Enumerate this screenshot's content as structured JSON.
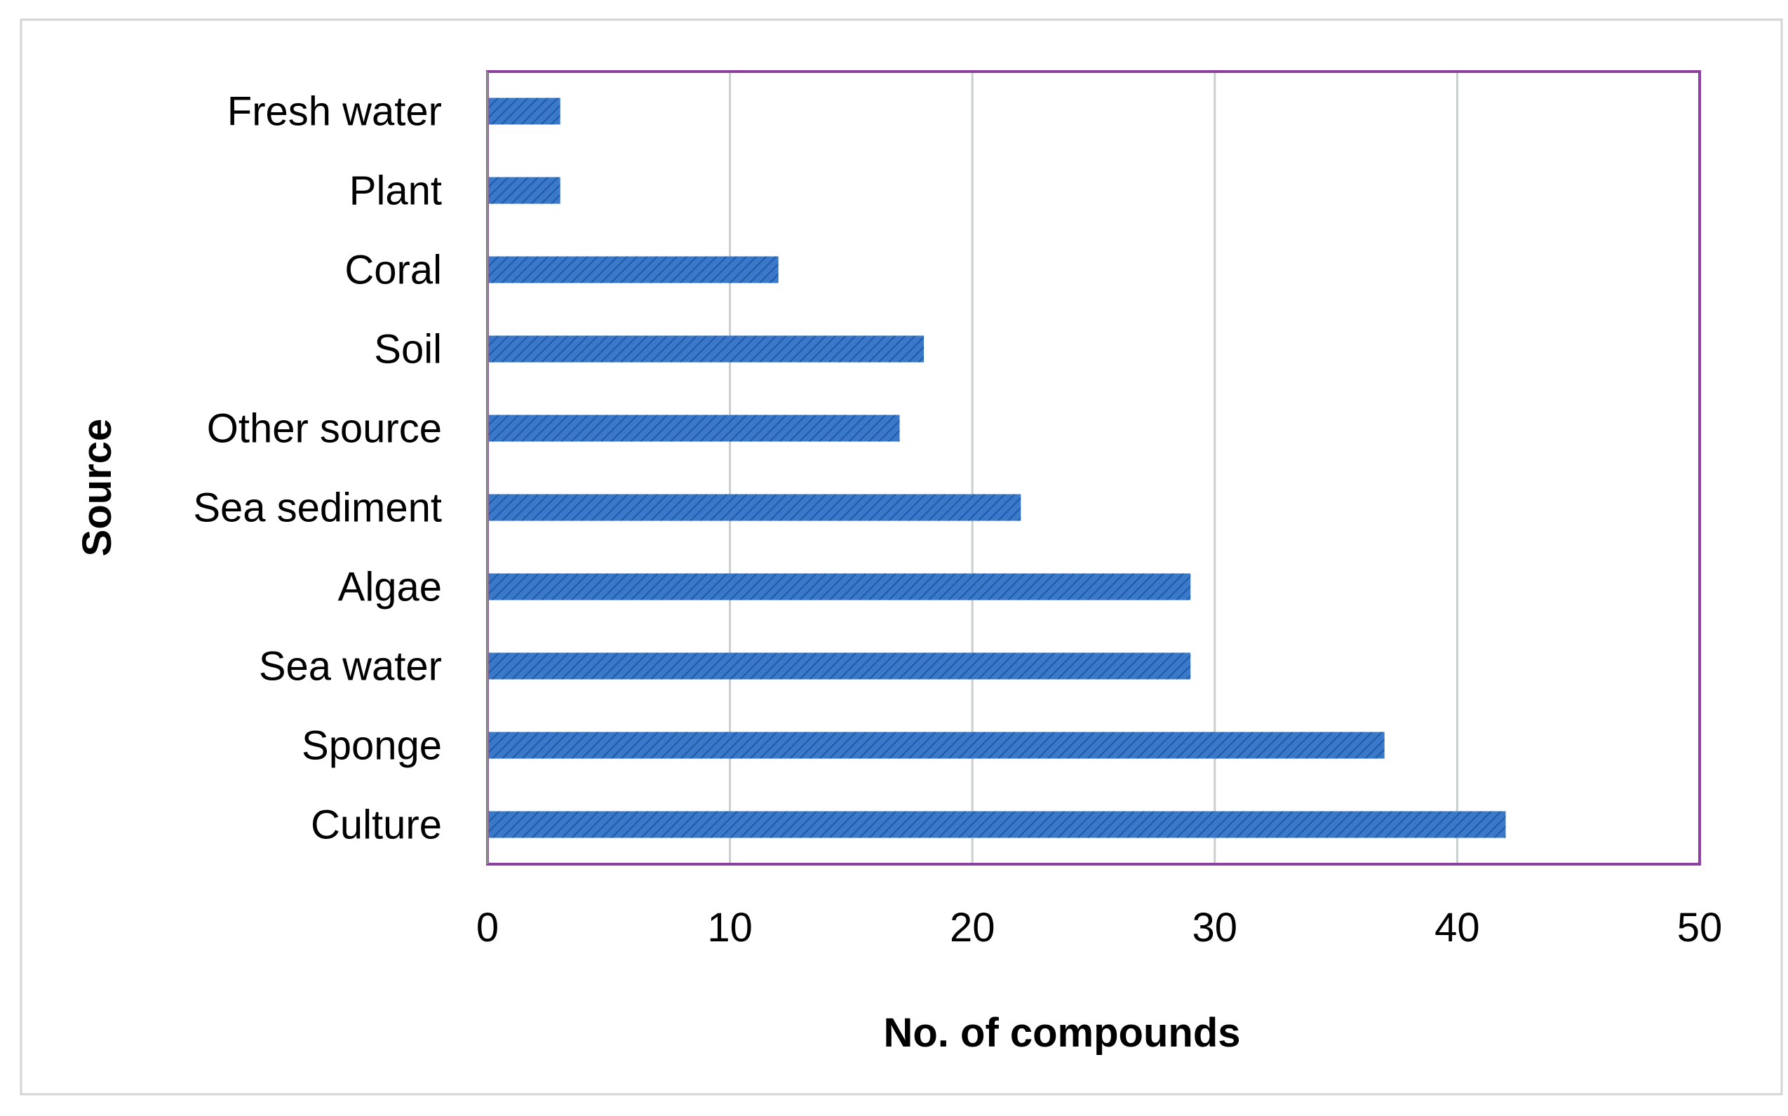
{
  "chart_data": {
    "type": "bar",
    "orientation": "horizontal",
    "categories": [
      "Fresh water",
      "Plant",
      "Coral",
      "Soil",
      "Other source",
      "Sea sediment",
      "Algae",
      "Sea water",
      "Sponge",
      "Culture"
    ],
    "values": [
      3,
      3,
      12,
      18,
      17,
      22,
      29,
      29,
      37,
      42
    ],
    "title": "",
    "xlabel": "No. of compounds",
    "ylabel": "Source",
    "xlim": [
      0,
      50
    ],
    "xticks": [
      0,
      10,
      20,
      30,
      40,
      50
    ],
    "grid": "vertical",
    "legend": "none",
    "colors": {
      "bar": "#3a78c9",
      "bar_hatch": "#1f5aa6",
      "plot_border": "#8c3fa1",
      "grid": "#c9d0cc",
      "axis": "#8a8a8a",
      "frame": "#d4d4d4",
      "text": "#000000"
    }
  }
}
